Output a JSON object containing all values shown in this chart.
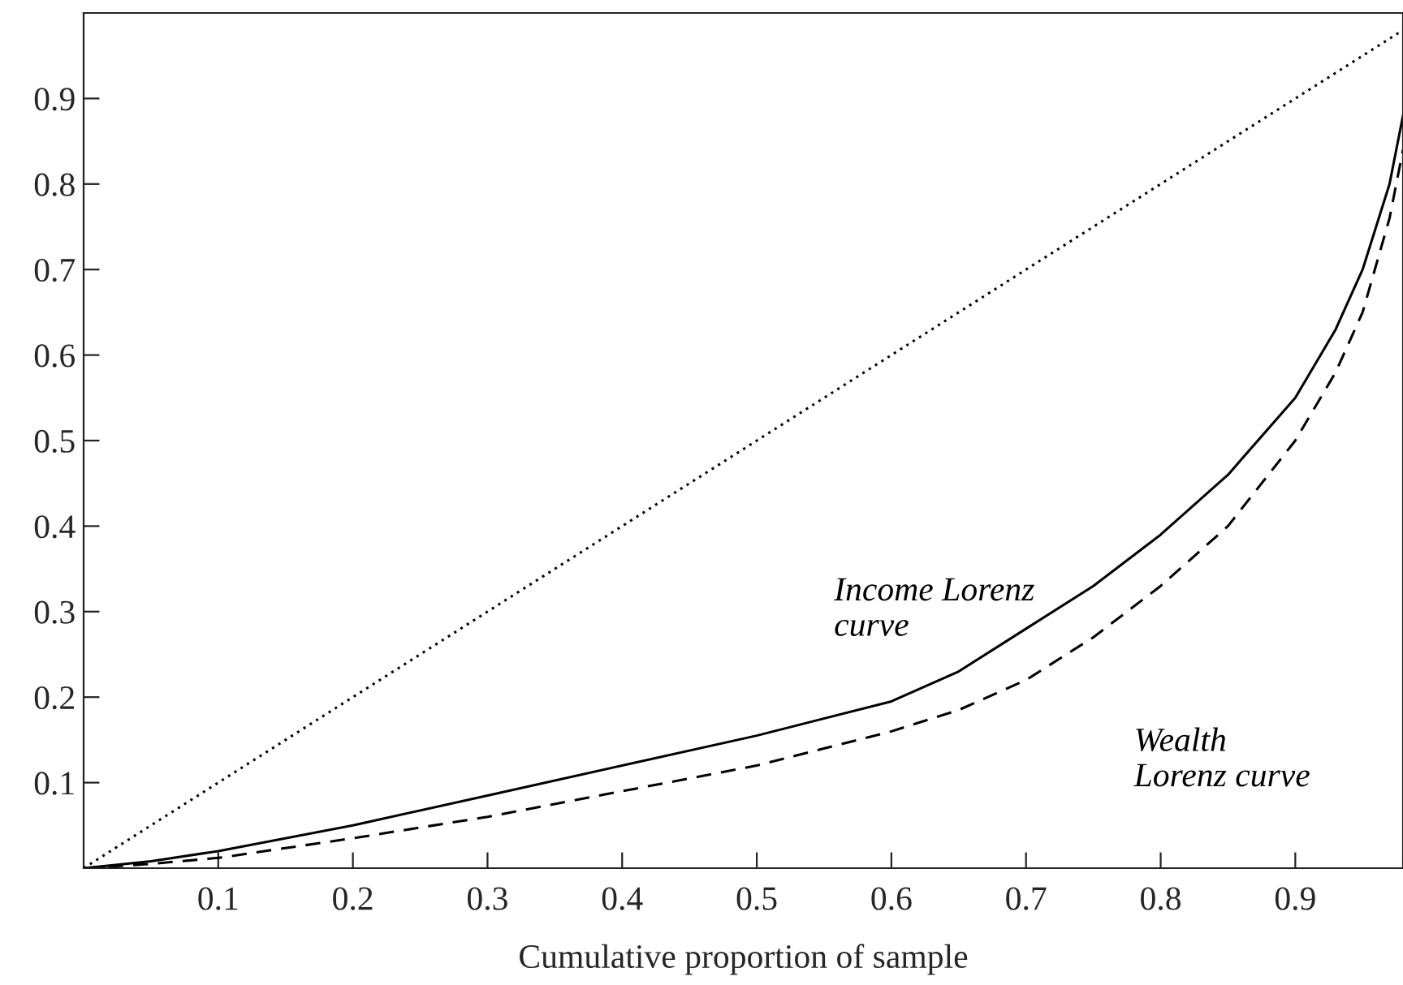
{
  "chart_data": {
    "type": "line",
    "xlabel": "Cumulative proportion of sample",
    "xlim": [
      0,
      0.98
    ],
    "ylim": [
      0,
      1.0
    ],
    "xticks": [
      0.1,
      0.2,
      0.3,
      0.4,
      0.5,
      0.6,
      0.7,
      0.8,
      0.9
    ],
    "yticks": [
      0.1,
      0.2,
      0.3,
      0.4,
      0.5,
      0.6,
      0.7,
      0.8,
      0.9
    ],
    "grid": false,
    "marker": "none",
    "series": [
      {
        "color": "#000000",
        "line_style": "dotted",
        "x": [
          0,
          0.98
        ],
        "values": [
          0,
          0.98
        ]
      },
      {
        "name": "Income Lorenz\ncurve",
        "color": "#000000",
        "line_style": "solid",
        "x": [
          0,
          0.05,
          0.1,
          0.2,
          0.3,
          0.4,
          0.5,
          0.6,
          0.65,
          0.7,
          0.75,
          0.8,
          0.85,
          0.9,
          0.93,
          0.95,
          0.97,
          0.98
        ],
        "values": [
          0,
          0.008,
          0.02,
          0.05,
          0.085,
          0.12,
          0.155,
          0.195,
          0.23,
          0.28,
          0.33,
          0.39,
          0.46,
          0.55,
          0.63,
          0.7,
          0.8,
          0.88
        ]
      },
      {
        "name": "Wealth\nLorenz curve",
        "color": "#000000",
        "line_style": "dashed",
        "x": [
          0,
          0.05,
          0.1,
          0.2,
          0.3,
          0.4,
          0.5,
          0.6,
          0.65,
          0.7,
          0.75,
          0.8,
          0.85,
          0.9,
          0.93,
          0.95,
          0.97,
          0.98
        ],
        "values": [
          0,
          0.005,
          0.012,
          0.035,
          0.06,
          0.09,
          0.12,
          0.16,
          0.185,
          0.22,
          0.27,
          0.33,
          0.4,
          0.5,
          0.58,
          0.65,
          0.76,
          0.84
        ]
      }
    ]
  }
}
